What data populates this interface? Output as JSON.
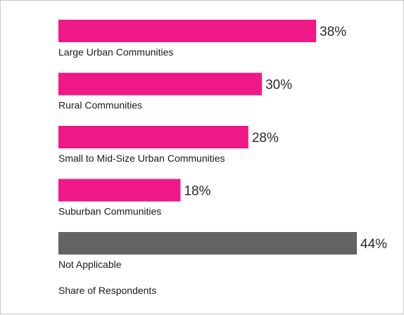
{
  "chart_data": {
    "type": "bar",
    "orientation": "horizontal",
    "categories": [
      "Large Urban Communities",
      "Rural Communities",
      "Small to Mid-Size Urban Communities",
      "Suburban Communities",
      "Not Applicable"
    ],
    "values": [
      38,
      30,
      28,
      18,
      44
    ],
    "value_labels": [
      "38%",
      "30%",
      "28%",
      "18%",
      "44%"
    ],
    "bar_colors": [
      "#ee1887",
      "#ee1887",
      "#ee1887",
      "#ee1887",
      "#636363"
    ],
    "xlabel": "Share of Respondents",
    "xlim": [
      0,
      44
    ],
    "grid": false,
    "legend": "none"
  }
}
